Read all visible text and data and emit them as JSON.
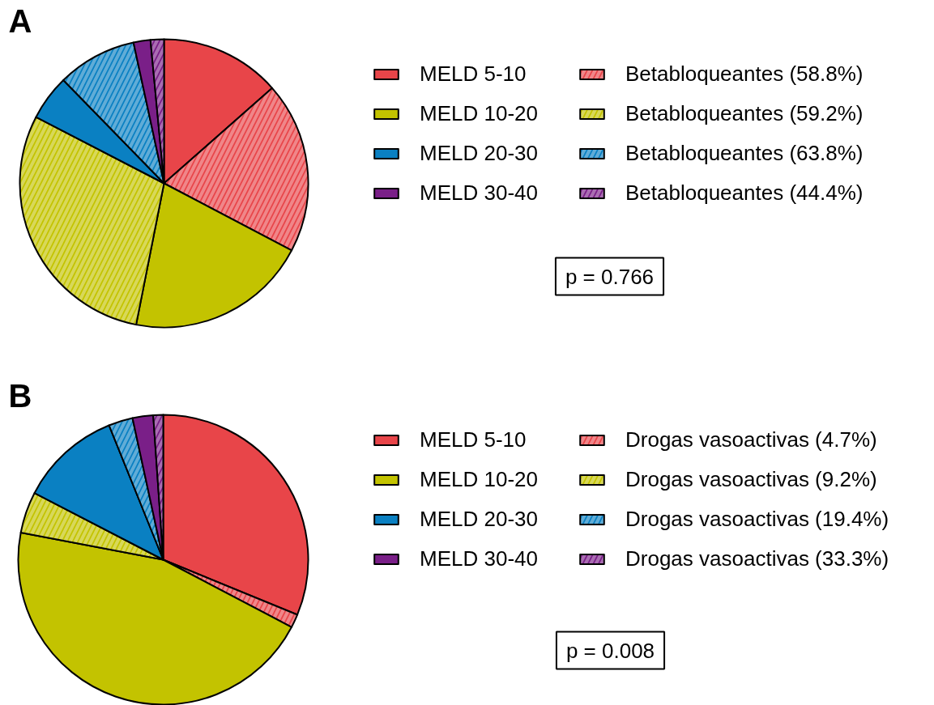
{
  "chart_data": [
    {
      "type": "pie",
      "title": "A",
      "categories": [
        "MELD 5-10",
        "Betabloqueantes (58.8%)",
        "MELD 10-20",
        "Betabloqueantes (59.2%)",
        "MELD 20-30",
        "Betabloqueantes (63.8%)",
        "MELD 30-40",
        "Betabloqueantes (44.4%)"
      ],
      "values": [
        13.5,
        19.2,
        20.4,
        29.5,
        5.1,
        8.9,
        1.9,
        1.5
      ],
      "colors": [
        "#e84549",
        "#e84549",
        "#c3c300",
        "#c3c300",
        "#0a80c2",
        "#0a80c2",
        "#7a1f88",
        "#7a1f88"
      ],
      "legend": "right",
      "annotations": [
        "p = 0.766"
      ]
    },
    {
      "type": "pie",
      "title": "B",
      "categories": [
        "MELD 5-10",
        "Drogas vasoactivas (4.7%)",
        "MELD 10-20",
        "Drogas vasoactivas (9.2%)",
        "MELD 20-30",
        "Drogas vasoactivas (19.4%)",
        "MELD 30-40",
        "Drogas vasoactivas (33.3%)"
      ],
      "values": [
        31.2,
        1.5,
        45.3,
        4.6,
        11.3,
        2.7,
        2.3,
        1.1
      ],
      "colors": [
        "#e84549",
        "#e84549",
        "#c3c300",
        "#c3c300",
        "#0a80c2",
        "#0a80c2",
        "#7a1f88",
        "#7a1f88"
      ],
      "legend": "right",
      "annotations": [
        "p = 0.008"
      ]
    }
  ]
}
